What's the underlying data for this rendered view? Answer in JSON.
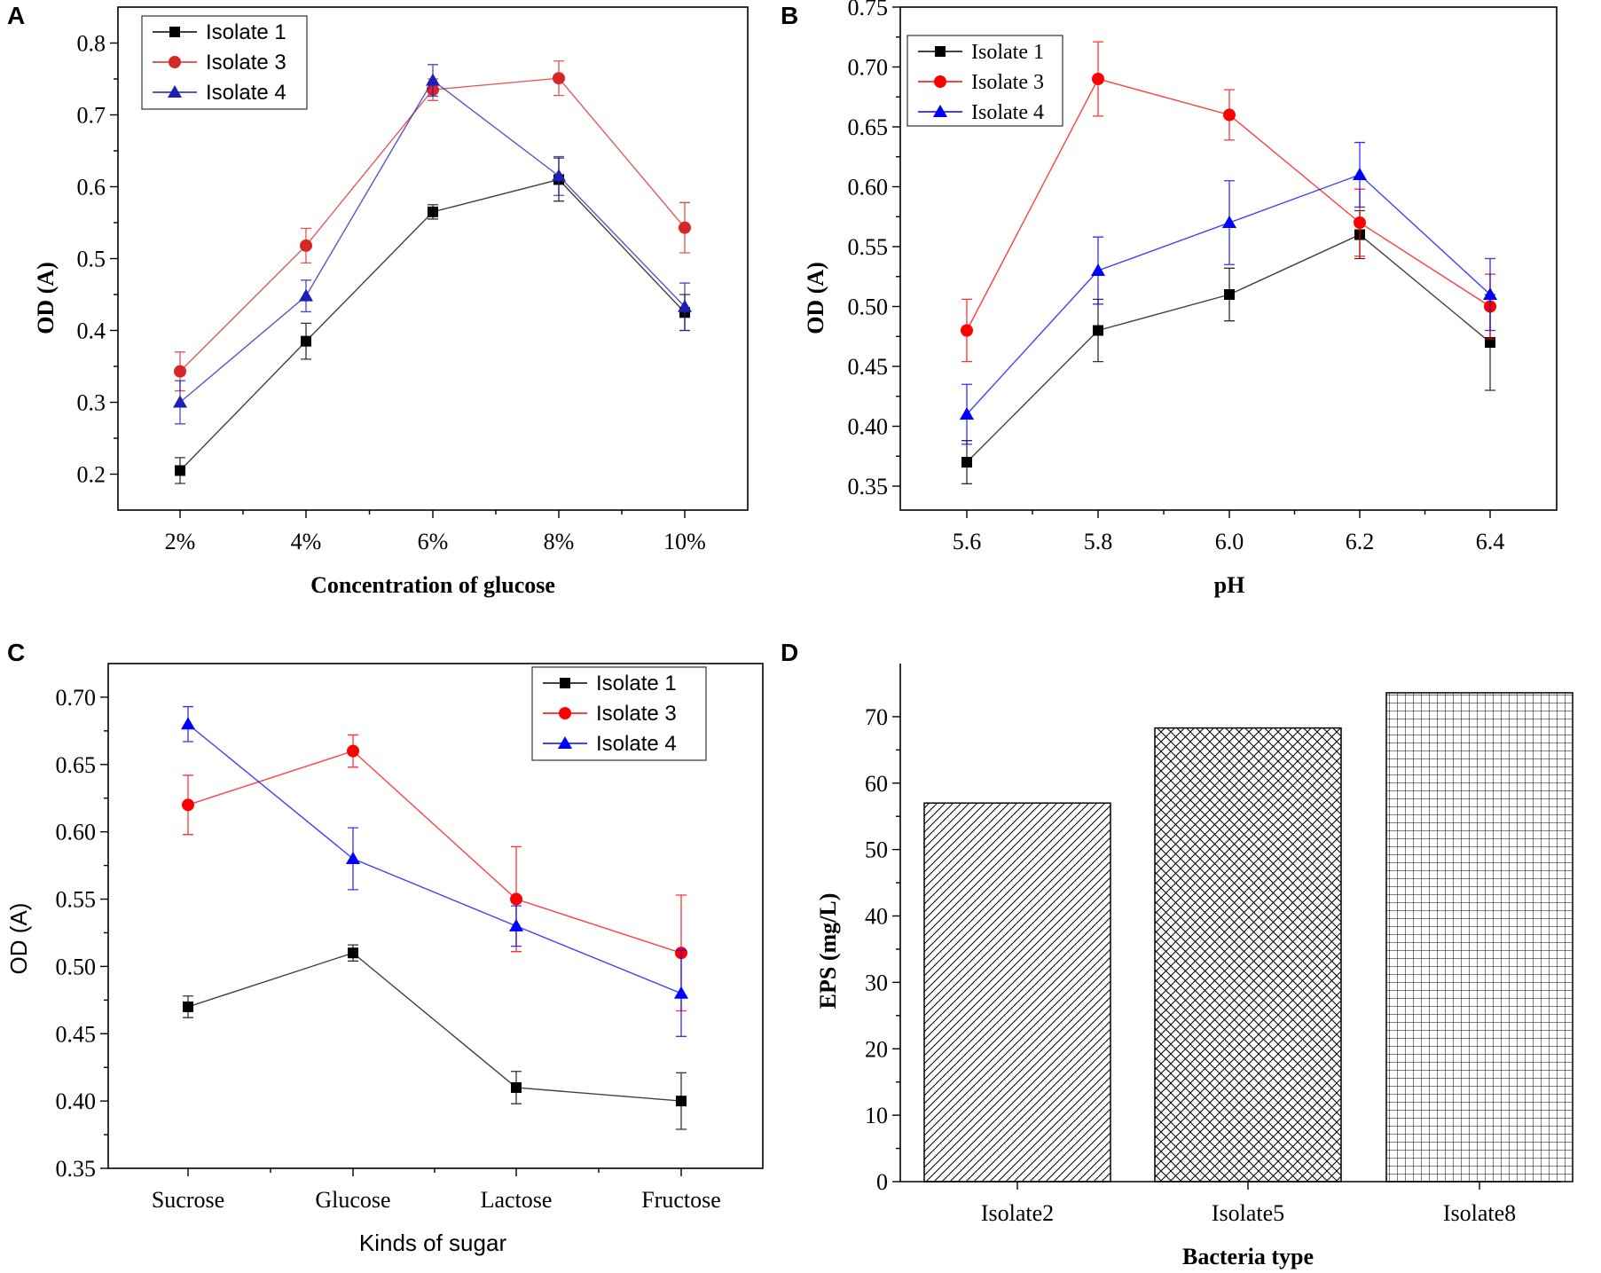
{
  "chart_data": [
    {
      "panel": "A",
      "type": "line",
      "categories": [
        "2%",
        "4%",
        "6%",
        "8%",
        "10%"
      ],
      "series": [
        {
          "name": "Isolate 1",
          "color": "#000000",
          "marker": "square",
          "values": [
            0.205,
            0.385,
            0.565,
            0.61,
            0.425
          ],
          "errors": [
            0.018,
            0.025,
            0.01,
            0.03,
            0.025
          ]
        },
        {
          "name": "Isolate 3",
          "color": "#d62728",
          "marker": "circle",
          "values": [
            0.343,
            0.518,
            0.735,
            0.751,
            0.543
          ],
          "errors": [
            0.027,
            0.024,
            0.015,
            0.024,
            0.035
          ]
        },
        {
          "name": "Isolate 4",
          "color": "#1f1fb4",
          "marker": "triangle",
          "values": [
            0.3,
            0.448,
            0.748,
            0.615,
            0.433
          ],
          "errors": [
            0.03,
            0.022,
            0.022,
            0.027,
            0.033
          ]
        }
      ],
      "title": "",
      "xlabel": "Concentration of glucose",
      "ylabel": "OD (A)",
      "ylim": [
        0.15,
        0.85
      ],
      "yticks": [
        0.2,
        0.3,
        0.4,
        0.5,
        0.6,
        0.7,
        0.8
      ],
      "ytick_labels": [
        "0.2",
        "0.3",
        "0.4",
        "0.5",
        "0.6",
        "0.7",
        "0.8"
      ],
      "legend": "top-left"
    },
    {
      "panel": "B",
      "type": "line",
      "categories": [
        "5.6",
        "5.8",
        "6.0",
        "6.2",
        "6.4"
      ],
      "series": [
        {
          "name": "Isolate 1",
          "color": "#000000",
          "marker": "square",
          "values": [
            0.37,
            0.48,
            0.51,
            0.56,
            0.47
          ],
          "errors": [
            0.018,
            0.026,
            0.022,
            0.02,
            0.04
          ]
        },
        {
          "name": "Isolate 3",
          "color": "#ff0000",
          "marker": "circle",
          "values": [
            0.48,
            0.69,
            0.66,
            0.57,
            0.5
          ],
          "errors": [
            0.026,
            0.031,
            0.021,
            0.028,
            0.027
          ]
        },
        {
          "name": "Isolate 4",
          "color": "#0000ff",
          "marker": "triangle",
          "values": [
            0.41,
            0.53,
            0.57,
            0.61,
            0.51
          ],
          "errors": [
            0.025,
            0.028,
            0.035,
            0.027,
            0.03
          ]
        }
      ],
      "title": "",
      "xlabel": "pH",
      "ylabel": "OD (A)",
      "ylim": [
        0.33,
        0.75
      ],
      "yticks": [
        0.35,
        0.4,
        0.45,
        0.5,
        0.55,
        0.6,
        0.65,
        0.7,
        0.75
      ],
      "ytick_labels": [
        "0.35",
        "0.40",
        "0.45",
        "0.50",
        "0.55",
        "0.60",
        "0.65",
        "0.70",
        "0.75"
      ],
      "legend": "top-left"
    },
    {
      "panel": "C",
      "type": "line",
      "categories": [
        "Sucrose",
        "Glucose",
        "Lactose",
        "Fructose"
      ],
      "series": [
        {
          "name": "Isolate 1",
          "color": "#000000",
          "marker": "square",
          "values": [
            0.47,
            0.51,
            0.41,
            0.4
          ],
          "errors": [
            0.008,
            0.006,
            0.012,
            0.021
          ]
        },
        {
          "name": "Isolate 3",
          "color": "#ff0000",
          "marker": "circle",
          "values": [
            0.62,
            0.66,
            0.55,
            0.51
          ],
          "errors": [
            0.022,
            0.012,
            0.039,
            0.043
          ]
        },
        {
          "name": "Isolate 4",
          "color": "#0000ff",
          "marker": "triangle",
          "values": [
            0.68,
            0.58,
            0.53,
            0.48
          ],
          "errors": [
            0.013,
            0.023,
            0.015,
            0.032
          ]
        }
      ],
      "title": "",
      "xlabel": "Kinds of sugar",
      "ylabel": "OD (A)",
      "ylim": [
        0.35,
        0.725
      ],
      "yticks": [
        0.35,
        0.4,
        0.45,
        0.5,
        0.55,
        0.6,
        0.65,
        0.7
      ],
      "ytick_labels": [
        "0.35",
        "0.40",
        "0.45",
        "0.50",
        "0.55",
        "0.60",
        "0.65",
        "0.70"
      ],
      "legend": "top-right"
    },
    {
      "panel": "D",
      "type": "bar",
      "categories": [
        "Isolate2",
        "Isolate5",
        "Isolate8"
      ],
      "values": [
        57,
        68.3,
        73.6
      ],
      "patterns": [
        "diagonal-hatch",
        "cross-hatch",
        "grid"
      ],
      "title": "",
      "xlabel": "Bacteria type",
      "ylabel": "EPS (mg/L)",
      "ylim": [
        0,
        78
      ],
      "yticks": [
        0,
        10,
        20,
        30,
        40,
        50,
        60,
        70
      ],
      "ytick_labels": [
        "0",
        "10",
        "20",
        "30",
        "40",
        "50",
        "60",
        "70"
      ],
      "legend": "none"
    }
  ]
}
